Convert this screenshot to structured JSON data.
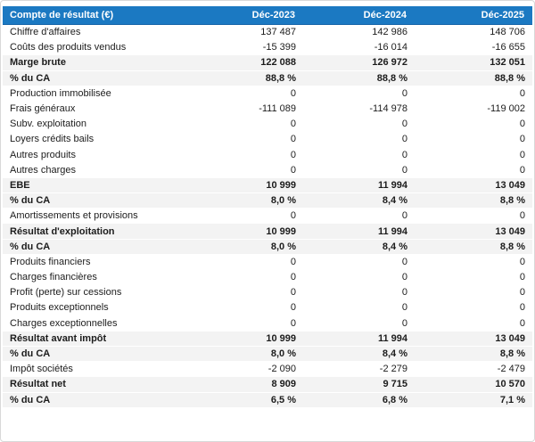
{
  "table": {
    "title_column_label": "Compte de résultat (€)",
    "period_columns": [
      "Déc-2023",
      "Déc-2024",
      "Déc-2025"
    ],
    "rows": [
      {
        "label": "Chiffre d'affaires",
        "values": [
          "137 487",
          "142 986",
          "148 706"
        ],
        "style": "normal"
      },
      {
        "label": "Coûts des produits vendus",
        "values": [
          "-15 399",
          "-16 014",
          "-16 655"
        ],
        "style": "normal"
      },
      {
        "label": "Marge brute",
        "values": [
          "122 088",
          "126 972",
          "132 051"
        ],
        "style": "total"
      },
      {
        "label": "% du CA",
        "values": [
          "88,8 %",
          "88,8 %",
          "88,8 %"
        ],
        "style": "total"
      },
      {
        "label": "Production immobilisée",
        "values": [
          "0",
          "0",
          "0"
        ],
        "style": "normal"
      },
      {
        "label": "Frais généraux",
        "values": [
          "-111 089",
          "-114 978",
          "-119 002"
        ],
        "style": "normal"
      },
      {
        "label": "Subv. exploitation",
        "values": [
          "0",
          "0",
          "0"
        ],
        "style": "normal"
      },
      {
        "label": "Loyers crédits bails",
        "values": [
          "0",
          "0",
          "0"
        ],
        "style": "normal"
      },
      {
        "label": "Autres produits",
        "values": [
          "0",
          "0",
          "0"
        ],
        "style": "normal"
      },
      {
        "label": "Autres charges",
        "values": [
          "0",
          "0",
          "0"
        ],
        "style": "normal"
      },
      {
        "label": "EBE",
        "values": [
          "10 999",
          "11 994",
          "13 049"
        ],
        "style": "total"
      },
      {
        "label": "% du CA",
        "values": [
          "8,0 %",
          "8,4 %",
          "8,8 %"
        ],
        "style": "total"
      },
      {
        "label": "Amortissements et provisions",
        "values": [
          "0",
          "0",
          "0"
        ],
        "style": "normal"
      },
      {
        "label": "Résultat d'exploitation",
        "values": [
          "10 999",
          "11 994",
          "13 049"
        ],
        "style": "total"
      },
      {
        "label": "% du CA",
        "values": [
          "8,0 %",
          "8,4 %",
          "8,8 %"
        ],
        "style": "total"
      },
      {
        "label": "Produits financiers",
        "values": [
          "0",
          "0",
          "0"
        ],
        "style": "normal"
      },
      {
        "label": "Charges financières",
        "values": [
          "0",
          "0",
          "0"
        ],
        "style": "normal"
      },
      {
        "label": "Profit (perte) sur cessions",
        "values": [
          "0",
          "0",
          "0"
        ],
        "style": "normal"
      },
      {
        "label": "Produits exceptionnels",
        "values": [
          "0",
          "0",
          "0"
        ],
        "style": "normal"
      },
      {
        "label": "Charges exceptionnelles",
        "values": [
          "0",
          "0",
          "0"
        ],
        "style": "normal"
      },
      {
        "label": "Résultat avant impôt",
        "values": [
          "10 999",
          "11 994",
          "13 049"
        ],
        "style": "total"
      },
      {
        "label": "% du CA",
        "values": [
          "8,0 %",
          "8,4 %",
          "8,8 %"
        ],
        "style": "total"
      },
      {
        "label": "Impôt sociétés",
        "values": [
          "-2 090",
          "-2 279",
          "-2 479"
        ],
        "style": "normal"
      },
      {
        "label": "Résultat net",
        "values": [
          "8 909",
          "9 715",
          "10 570"
        ],
        "style": "total"
      },
      {
        "label": "% du CA",
        "values": [
          "6,5 %",
          "6,8 %",
          "7,1 %"
        ],
        "style": "total"
      }
    ]
  },
  "colors": {
    "header_background": "#1b79c2",
    "header_text": "#ffffff",
    "total_row_background": "#f3f3f3",
    "body_text": "#1c1c1c",
    "card_border": "#d8d8d8"
  }
}
